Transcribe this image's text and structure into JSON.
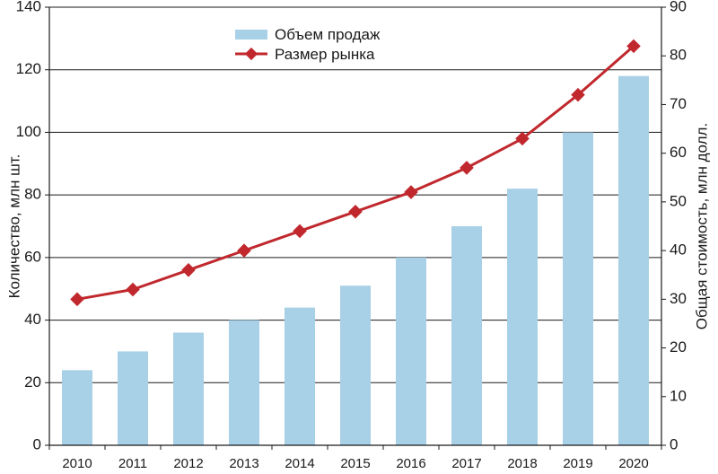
{
  "chart_data": {
    "type": "bar+line",
    "categories": [
      "2010",
      "2011",
      "2012",
      "2013",
      "2014",
      "2015",
      "2016",
      "2017",
      "2018",
      "2019",
      "2020"
    ],
    "series": [
      {
        "name": "Объем продаж",
        "type": "bar",
        "axis": "left",
        "color": "#a8d0e6",
        "values": [
          24,
          30,
          36,
          40,
          44,
          51,
          60,
          70,
          82,
          100,
          118
        ]
      },
      {
        "name": "Размер рынка",
        "type": "line",
        "axis": "right",
        "color": "#c0282d",
        "values": [
          30,
          32,
          36,
          40,
          44,
          48,
          52,
          57,
          63,
          72,
          82
        ]
      }
    ],
    "ylabel_left": "Количество, млн шт.",
    "ylabel_right": "Общая стоимость, млн долл.",
    "ylim_left": [
      0,
      140
    ],
    "ylim_right": [
      0,
      90
    ],
    "yticks_left": [
      "0",
      "20",
      "40",
      "60",
      "80",
      "100",
      "120",
      "140"
    ],
    "yticks_right": [
      "0",
      "10",
      "20",
      "30",
      "40",
      "50",
      "60",
      "70",
      "80",
      "90"
    ],
    "grid": true,
    "legend_position": "top-center"
  }
}
